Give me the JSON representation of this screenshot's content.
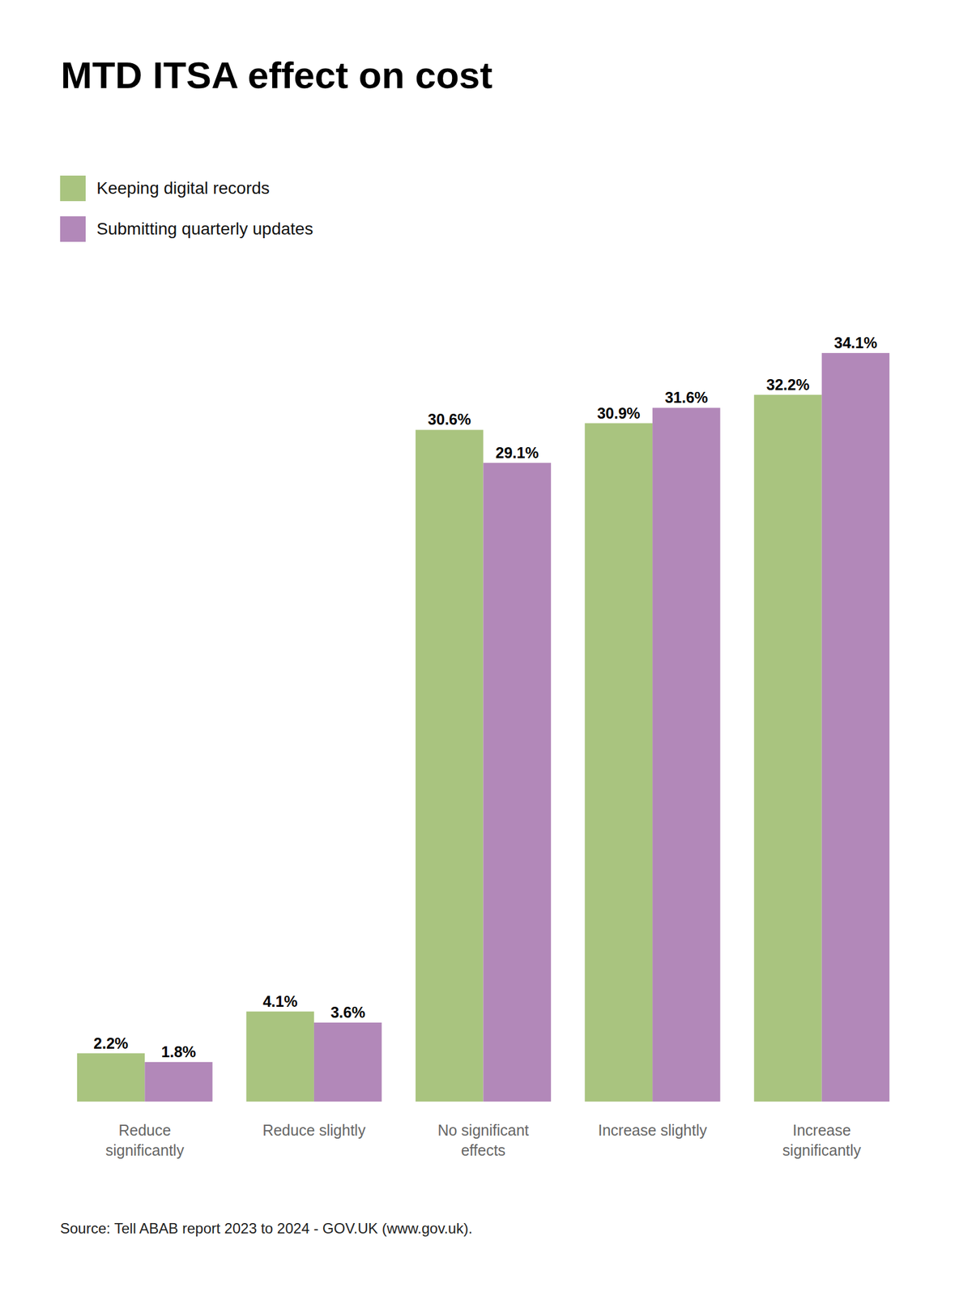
{
  "chart_data": {
    "type": "bar",
    "title": "MTD ITSA effect on cost",
    "source": "Source: Tell ABAB report 2023 to 2024 - GOV.UK (www.gov.uk).",
    "categories": [
      "Reduce significantly",
      "Reduce slightly",
      "No significant effects",
      "Increase slightly",
      "Increase significantly"
    ],
    "series": [
      {
        "name": "Keeping digital records",
        "color": "#a9c47f",
        "values": [
          2.2,
          4.1,
          30.6,
          30.9,
          32.2
        ],
        "value_labels": [
          "2.2%",
          "4.1%",
          "30.6%",
          "30.9%",
          "32.2%"
        ]
      },
      {
        "name": "Submitting quarterly updates",
        "color": "#b288b9",
        "values": [
          1.8,
          3.6,
          29.1,
          31.6,
          34.1
        ],
        "value_labels": [
          "1.8%",
          "3.6%",
          "29.1%",
          "31.6%",
          "34.1%"
        ]
      }
    ],
    "ylim": [
      0,
      34.1
    ],
    "grid": false,
    "legend": "top-left",
    "data_labels": true,
    "tick_labels": "x"
  }
}
